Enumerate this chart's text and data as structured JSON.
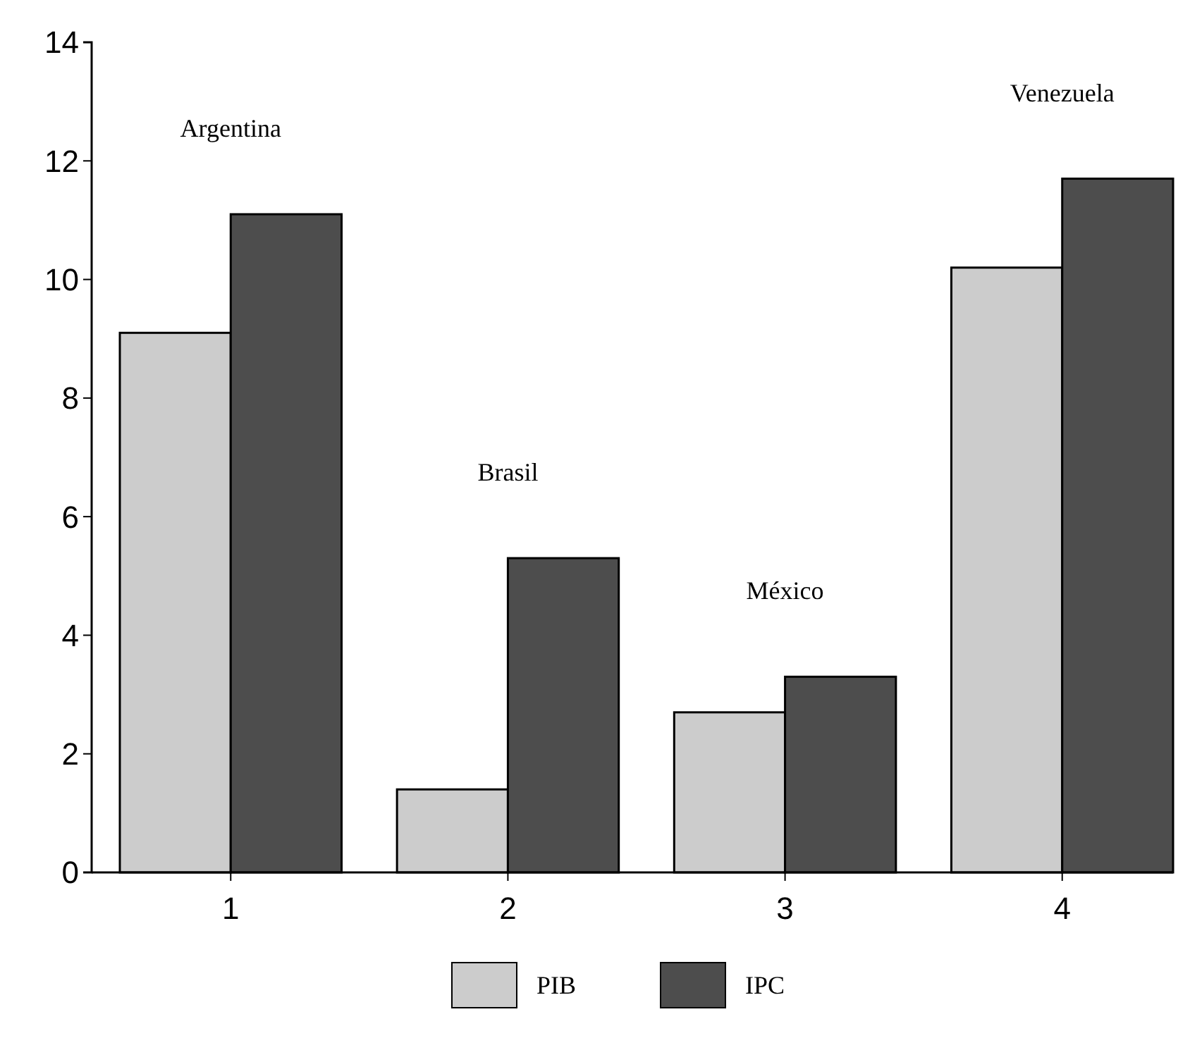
{
  "chart_data": {
    "type": "bar",
    "categories": [
      "1",
      "2",
      "3",
      "4"
    ],
    "series": [
      {
        "name": "PIB",
        "color": "#cccccc",
        "values": [
          9.1,
          1.4,
          2.7,
          10.2
        ]
      },
      {
        "name": "IPC",
        "color": "#4d4d4d",
        "values": [
          11.1,
          5.3,
          3.3,
          11.7
        ]
      }
    ],
    "ylim": [
      0,
      14
    ],
    "yticks": [
      0,
      2,
      4,
      6,
      8,
      10,
      12,
      14
    ],
    "legend": "bottom",
    "annotations": [
      "Argentina",
      "Brasil",
      "México",
      "Venezuela"
    ]
  }
}
